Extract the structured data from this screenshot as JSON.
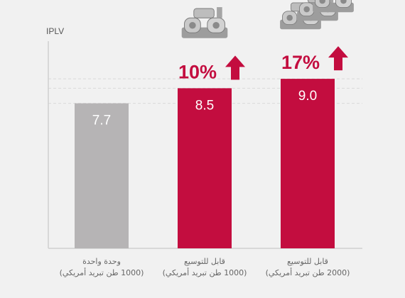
{
  "chart_data": {
    "type": "bar",
    "ylabel": "IPLV",
    "ylim": [
      0,
      11
    ],
    "grid": true,
    "categories": [
      [
        "وحدة واحدة",
        "(1000 طن تبريد أمريكي)"
      ],
      [
        "قابل للتوسيع",
        "(1000 طن تبريد أمريكي)"
      ],
      [
        "قابل للتوسيع",
        "(2000 طن تبريد أمريكي)"
      ]
    ],
    "values": [
      7.7,
      8.5,
      9.0
    ],
    "value_labels": [
      "7.7",
      "8.5",
      "9.0"
    ],
    "improvements": [
      "",
      "10%",
      "17%"
    ],
    "bar_colors": [
      "#b6b4b5",
      "#c30d3f",
      "#c30d3f"
    ],
    "accent_color": "#c30d3f",
    "icon_names": [
      "",
      "chiller-unit-icon",
      "chiller-modules-icon"
    ]
  }
}
